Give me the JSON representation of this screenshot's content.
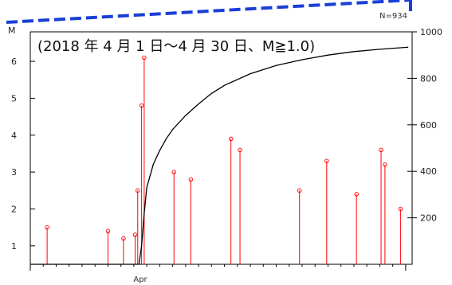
{
  "chart_data": {
    "type": "line",
    "annotation": "(2018 年 4 月 1 日～4 月 30 日、M≧1.0)",
    "count_label": "N=934",
    "left_axis": {
      "label": "M",
      "ticks": [
        1,
        2,
        3,
        4,
        5,
        6
      ],
      "range": [
        0.5,
        6.8
      ]
    },
    "right_axis": {
      "ticks": [
        200,
        400,
        600,
        800,
        1000
      ],
      "range": [
        0,
        1000
      ]
    },
    "x_axis": {
      "range": [
        1,
        30.5
      ],
      "labels": [
        {
          "day": 1,
          "text": ""
        },
        {
          "day": 9.5,
          "text": "Apr"
        }
      ]
    },
    "series": [
      {
        "kind": "cumulative-count",
        "color": "#000000",
        "x": [
          1,
          9.4,
          9.6,
          9.8,
          10,
          10.5,
          11,
          11.5,
          12,
          13,
          14,
          15,
          16,
          18,
          20,
          22,
          24,
          26,
          28,
          30.2
        ],
        "y": [
          0,
          0,
          80,
          220,
          330,
          430,
          490,
          540,
          580,
          640,
          690,
          735,
          770,
          820,
          855,
          880,
          900,
          915,
          925,
          934
        ]
      },
      {
        "kind": "magnitude-stems",
        "color": "#ff0000",
        "x": [
          2.3,
          9.8,
          9.6,
          8.2,
          9.3,
          16.5,
          17.2,
          12.1,
          13.4,
          23.9,
          28.1,
          28.4,
          21.8,
          7.0,
          9.1,
          26.2,
          29.6
        ],
        "y": [
          1.5,
          6.1,
          4.8,
          1.2,
          2.5,
          3.9,
          3.6,
          3.0,
          2.8,
          3.3,
          3.6,
          3.2,
          2.5,
          1.4,
          1.3,
          2.4,
          2.0
        ]
      }
    ]
  }
}
